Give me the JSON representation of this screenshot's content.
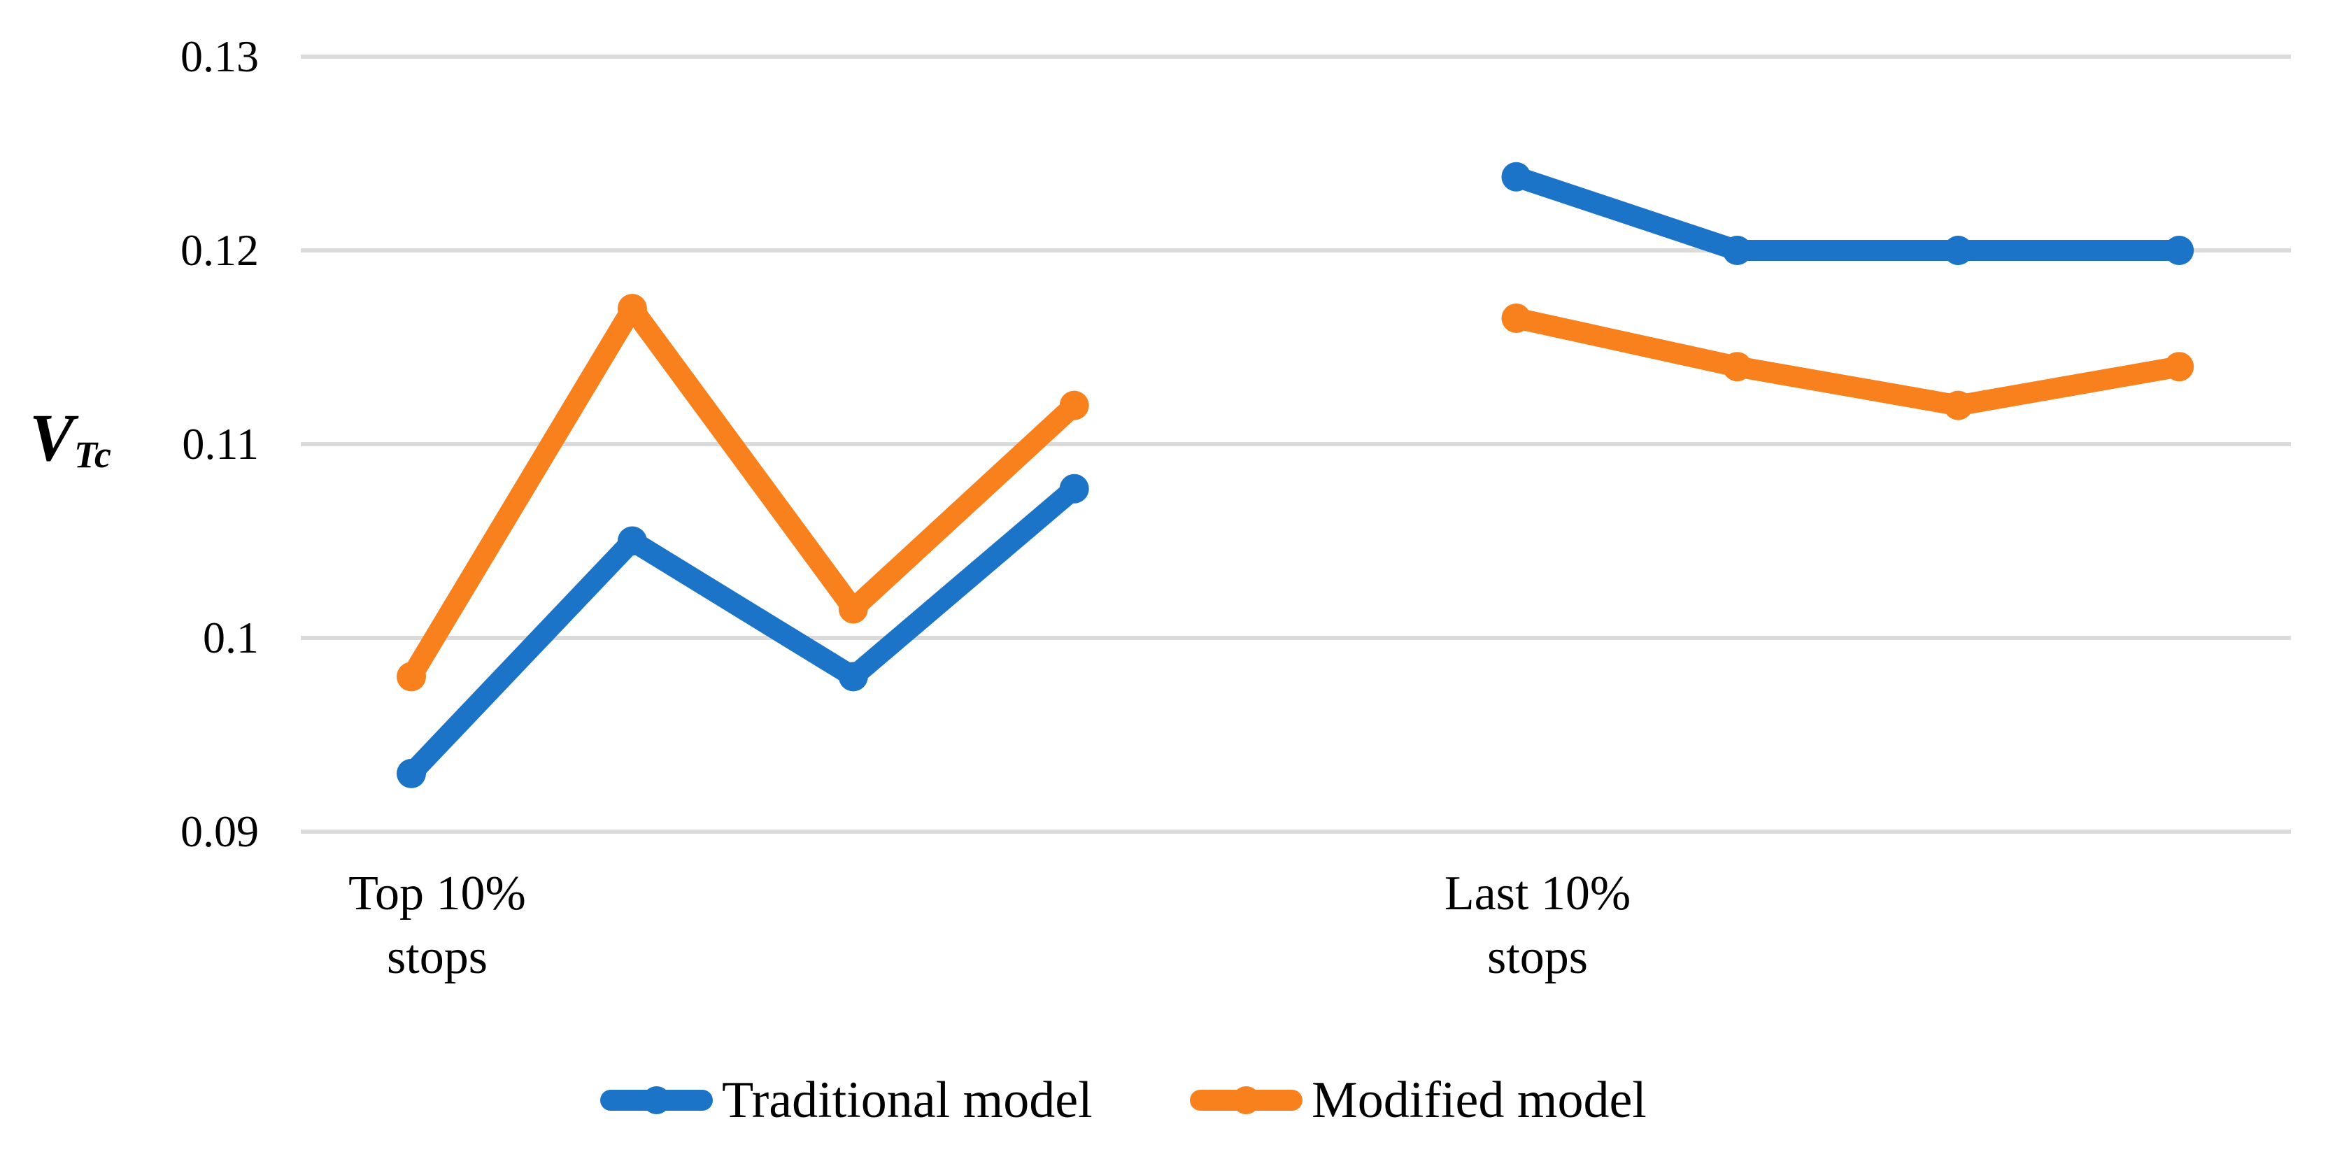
{
  "chart_data": {
    "type": "line",
    "title": "",
    "ylabel_main": "V",
    "ylabel_sub": "Tc",
    "grid": true,
    "legend_position": "bottom",
    "background_color": "#ffffff",
    "gridline_color": "#dbdbdb",
    "y_axis": {
      "min": 0.09,
      "max": 0.13,
      "tick_step": 0.01,
      "tick_labels": [
        {
          "value": 0.13,
          "label": "0.13"
        },
        {
          "value": 0.12,
          "label": "0.12"
        },
        {
          "value": 0.11,
          "label": "0.11"
        },
        {
          "value": 0.1,
          "label": "0.1"
        },
        {
          "value": 0.09,
          "label": "0.09"
        }
      ]
    },
    "x_axis": {
      "slots": 9,
      "category_labels": [
        {
          "slot": 0,
          "line1": "Top 10%",
          "line2": "stops"
        },
        {
          "slot": 5,
          "line1": "Last 10%",
          "line2": "stops"
        }
      ]
    },
    "series": [
      {
        "name": "Traditional model",
        "color": "#1b74c7",
        "values": [
          0.093,
          0.105,
          0.098,
          0.1077,
          null,
          0.1238,
          0.12,
          0.12,
          0.12
        ]
      },
      {
        "name": "Modified model",
        "color": "#f8811e",
        "values": [
          0.098,
          0.117,
          0.1015,
          0.112,
          null,
          0.1165,
          0.114,
          0.112,
          0.114
        ]
      }
    ]
  }
}
